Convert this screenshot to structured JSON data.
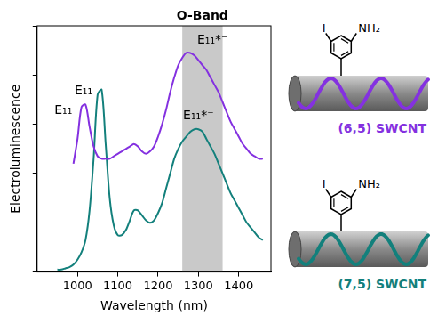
{
  "chart_data": {
    "type": "line",
    "x_label": "Wavelength (nm)",
    "y_label": "Electroluminescence",
    "x": [
      950,
      960,
      970,
      980,
      990,
      1000,
      1010,
      1020,
      1030,
      1040,
      1050,
      1060,
      1070,
      1080,
      1090,
      1100,
      1110,
      1120,
      1130,
      1140,
      1150,
      1160,
      1170,
      1180,
      1190,
      1200,
      1210,
      1220,
      1230,
      1240,
      1250,
      1260,
      1270,
      1280,
      1290,
      1300,
      1310,
      1320,
      1330,
      1340,
      1350,
      1360,
      1370,
      1380,
      1390,
      1400,
      1410,
      1420,
      1430,
      1440,
      1450,
      1460
    ],
    "series": [
      {
        "name": "(6,5) SWCNT",
        "color": "#8431e0",
        "values": [
          null,
          null,
          null,
          null,
          4.4,
          5.4,
          6.7,
          6.8,
          5.9,
          5.1,
          4.7,
          4.6,
          4.6,
          4.6,
          4.7,
          4.8,
          4.9,
          5.0,
          5.1,
          5.2,
          5.1,
          4.9,
          4.8,
          4.9,
          5.1,
          5.5,
          6.0,
          6.6,
          7.3,
          7.9,
          8.4,
          8.7,
          8.9,
          8.9,
          8.8,
          8.6,
          8.4,
          8.2,
          7.9,
          7.6,
          7.3,
          6.9,
          6.5,
          6.1,
          5.8,
          5.5,
          5.2,
          5.0,
          4.8,
          4.7,
          4.6,
          4.6
        ]
      },
      {
        "name": "(7,5) SWCNT",
        "color": "#13807c",
        "values": [
          0.1,
          0.1,
          0.15,
          0.2,
          0.3,
          0.5,
          0.8,
          1.3,
          2.5,
          4.6,
          7.2,
          7.4,
          5.2,
          3.0,
          1.9,
          1.5,
          1.5,
          1.7,
          2.1,
          2.5,
          2.5,
          2.3,
          2.1,
          2.0,
          2.1,
          2.4,
          2.8,
          3.4,
          4.0,
          4.6,
          5.0,
          5.3,
          5.5,
          5.7,
          5.8,
          5.8,
          5.7,
          5.4,
          5.1,
          4.8,
          4.4,
          4.0,
          3.6,
          3.2,
          2.9,
          2.6,
          2.3,
          2.0,
          1.8,
          1.6,
          1.4,
          1.3
        ]
      }
    ],
    "xlim": [
      900,
      1480
    ],
    "xticks": [
      1000,
      1100,
      1200,
      1300,
      1400
    ],
    "ylim": [
      0,
      10
    ],
    "yticks": [
      0,
      2,
      4,
      6,
      8,
      10
    ],
    "tick_labels": "x",
    "grid": false,
    "band": {
      "text": "O-Band",
      "range": [
        1260,
        1360
      ]
    },
    "annotations": [
      {
        "text": "E₁₁",
        "x": 1015,
        "y": 7.1
      },
      {
        "text": "E₁₁*⁻",
        "x": 1335,
        "y": 9.15
      },
      {
        "text": "E₁₁",
        "x": 965,
        "y": 6.3
      },
      {
        "text": "E₁₁*⁻",
        "x": 1300,
        "y": 6.1
      }
    ]
  },
  "structure": {
    "substituents": [
      "I",
      "NH₂"
    ]
  }
}
